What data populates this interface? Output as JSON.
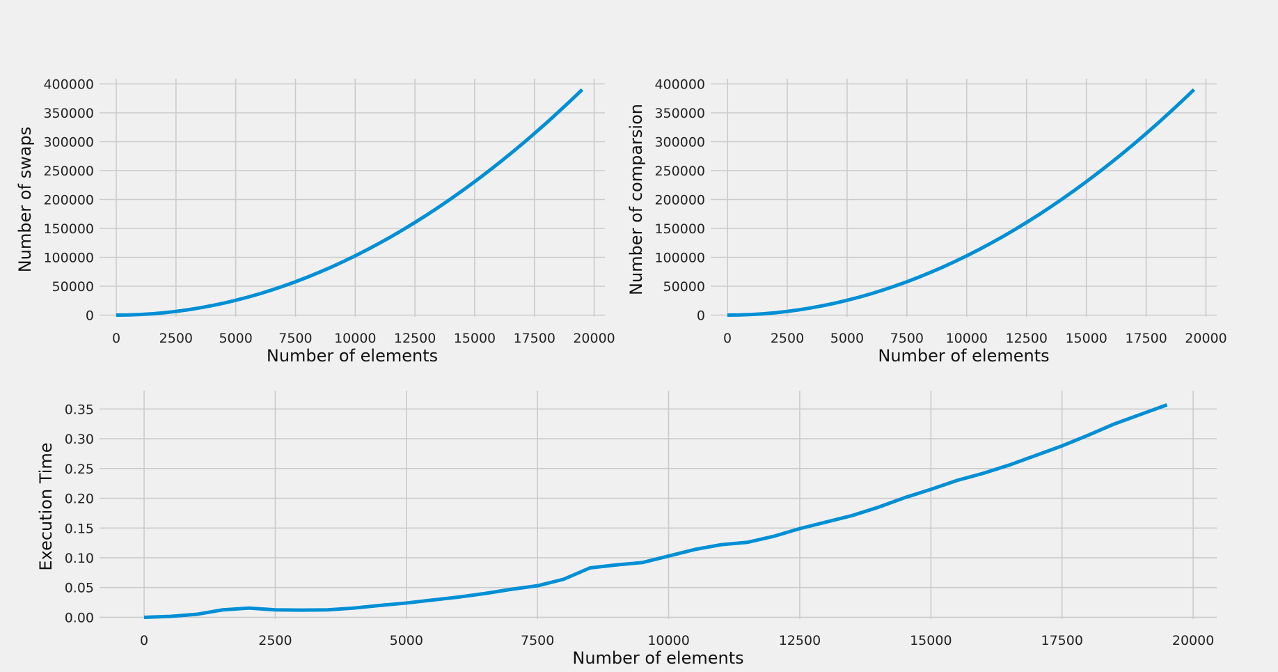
{
  "colors": {
    "background": "#f0f0f0",
    "line": "#008fd5",
    "grid": "#cbcbcb"
  },
  "chart_data": [
    {
      "type": "line",
      "title": "",
      "xlabel": "Number of elements",
      "ylabel": "Number of swaps",
      "xlim": [
        -700,
        20450
      ],
      "ylim": [
        -3000,
        403000
      ],
      "xticks": [
        0,
        2500,
        5000,
        7500,
        10000,
        12500,
        15000,
        17500,
        20000
      ],
      "yticks": [
        0,
        50000,
        100000,
        150000,
        200000,
        250000,
        300000,
        350000,
        400000
      ],
      "grid": true,
      "series": [
        {
          "x": [
            0,
            500,
            1000,
            1500,
            2000,
            2500,
            3000,
            3500,
            4000,
            4500,
            5000,
            5500,
            6000,
            6500,
            7000,
            7500,
            8000,
            8500,
            9000,
            9500,
            10000,
            10500,
            11000,
            11500,
            12000,
            12500,
            13000,
            13500,
            14000,
            14500,
            15000,
            15500,
            16000,
            16500,
            17000,
            17500,
            18000,
            18500,
            19000,
            19500
          ],
          "values": [
            0,
            256,
            1026,
            2309,
            4104,
            6413,
            9234,
            12569,
            16416,
            20776,
            25650,
            31036,
            36936,
            43349,
            50274,
            57713,
            65664,
            74129,
            83106,
            92597,
            102600,
            113116,
            124146,
            135689,
            147744,
            160313,
            173394,
            186989,
            201096,
            215717,
            230850,
            246496,
            262656,
            279329,
            296514,
            314213,
            332424,
            351149,
            370386,
            390137
          ]
        }
      ]
    },
    {
      "type": "line",
      "title": "",
      "xlabel": "Number of elements",
      "ylabel": "Number of comparsion",
      "xlim": [
        -700,
        20450
      ],
      "ylim": [
        -3000,
        403000
      ],
      "xticks": [
        0,
        2500,
        5000,
        7500,
        10000,
        12500,
        15000,
        17500,
        20000
      ],
      "yticks": [
        0,
        50000,
        100000,
        150000,
        200000,
        250000,
        300000,
        350000,
        400000
      ],
      "grid": true,
      "series": [
        {
          "x": [
            0,
            500,
            1000,
            1500,
            2000,
            2500,
            3000,
            3500,
            4000,
            4500,
            5000,
            5500,
            6000,
            6500,
            7000,
            7500,
            8000,
            8500,
            9000,
            9500,
            10000,
            10500,
            11000,
            11500,
            12000,
            12500,
            13000,
            13500,
            14000,
            14500,
            15000,
            15500,
            16000,
            16500,
            17000,
            17500,
            18000,
            18500,
            19000,
            19500
          ],
          "values": [
            0,
            256,
            1026,
            2309,
            4104,
            6413,
            9234,
            12569,
            16416,
            20776,
            25650,
            31036,
            36936,
            43349,
            50274,
            57713,
            65664,
            74129,
            83106,
            92597,
            102600,
            113116,
            124146,
            135689,
            147744,
            160313,
            173394,
            186989,
            201096,
            215717,
            230850,
            246496,
            262656,
            279329,
            296514,
            314213,
            332424,
            351149,
            370386,
            390137
          ]
        }
      ]
    },
    {
      "type": "line",
      "title": "",
      "xlabel": "Number of elements",
      "ylabel": "Execution Time",
      "xlim": [
        -850,
        20450
      ],
      "ylim": [
        -0.003,
        0.375
      ],
      "xticks": [
        0,
        2500,
        5000,
        7500,
        10000,
        12500,
        15000,
        17500,
        20000
      ],
      "yticks": [
        0.0,
        0.05,
        0.1,
        0.15,
        0.2,
        0.25,
        0.3,
        0.35
      ],
      "ytick_decimals": 2,
      "grid": true,
      "series": [
        {
          "x": [
            0,
            500,
            1000,
            1500,
            2000,
            2500,
            3000,
            3500,
            4000,
            4500,
            5000,
            5500,
            6000,
            6500,
            7000,
            7500,
            8000,
            8500,
            9000,
            9500,
            10000,
            10500,
            11000,
            11500,
            12000,
            12500,
            13000,
            13500,
            14000,
            14500,
            15000,
            15500,
            16000,
            16500,
            17000,
            17500,
            18000,
            18500,
            19000,
            19500
          ],
          "values": [
            0.0,
            0.0015,
            0.005,
            0.0125,
            0.0155,
            0.0125,
            0.012,
            0.0125,
            0.0155,
            0.02,
            0.024,
            0.029,
            0.034,
            0.04,
            0.047,
            0.053,
            0.064,
            0.083,
            0.088,
            0.092,
            0.103,
            0.114,
            0.122,
            0.126,
            0.136,
            0.149,
            0.16,
            0.171,
            0.185,
            0.201,
            0.215,
            0.23,
            0.242,
            0.256,
            0.272,
            0.288,
            0.306,
            0.325,
            0.341,
            0.357
          ]
        }
      ]
    }
  ]
}
